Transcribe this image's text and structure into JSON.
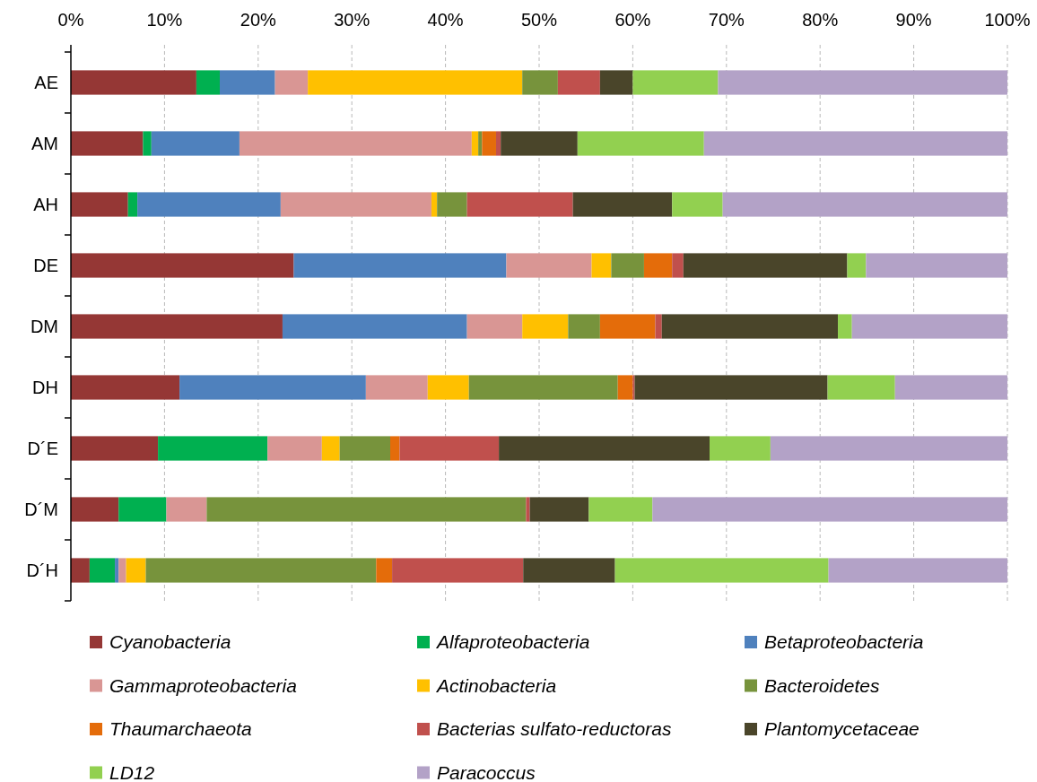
{
  "chart_data": {
    "type": "bar",
    "orientation": "horizontal",
    "stacked": true,
    "categories": [
      "AE",
      "AM",
      "AH",
      "DE",
      "DM",
      "DH",
      "D´E",
      "D´M",
      "D´H"
    ],
    "xlim": [
      0,
      100
    ],
    "xticks": [
      {
        "value": 0,
        "label": "0%"
      },
      {
        "value": 10,
        "label": "10%"
      },
      {
        "value": 20,
        "label": "20%"
      },
      {
        "value": 30,
        "label": "30%"
      },
      {
        "value": 40,
        "label": "40%"
      },
      {
        "value": 50,
        "label": "50%"
      },
      {
        "value": 60,
        "label": "60%"
      },
      {
        "value": 70,
        "label": "70%"
      },
      {
        "value": 80,
        "label": "80%"
      },
      {
        "value": 90,
        "label": "90%"
      },
      {
        "value": 100,
        "label": "100%"
      }
    ],
    "grid": "x",
    "legend": "bottom",
    "series": [
      {
        "name": "Cyanobacteria",
        "color": "#953735",
        "values": [
          13.4,
          7.7,
          6.1,
          23.8,
          22.6,
          11.6,
          9.3,
          5.1,
          2.0
        ]
      },
      {
        "name": "Alfaproteobacteria",
        "color": "#00b050",
        "values": [
          2.5,
          0.9,
          1.0,
          0,
          0,
          0,
          11.7,
          5.1,
          2.7
        ]
      },
      {
        "name": "Betaproteobacteria",
        "color": "#4f81bd",
        "values": [
          5.9,
          9.4,
          15.3,
          22.7,
          19.7,
          19.9,
          0,
          0,
          0.4
        ]
      },
      {
        "name": "Gammaproteobacteria",
        "color": "#d99694",
        "values": [
          3.5,
          24.8,
          16.1,
          9.1,
          5.9,
          6.6,
          5.8,
          4.3,
          0.8
        ]
      },
      {
        "name": "Actinobacteria",
        "color": "#ffc000",
        "values": [
          22.9,
          0.7,
          0.6,
          2.1,
          4.9,
          4.4,
          1.9,
          0,
          2.1
        ]
      },
      {
        "name": "Bacteroidetes",
        "color": "#77933c",
        "values": [
          3.8,
          0.4,
          3.2,
          3.5,
          3.4,
          15.9,
          5.4,
          34.1,
          24.6
        ]
      },
      {
        "name": "Thaumarchaeota",
        "color": "#e46c0a",
        "values": [
          0,
          1.5,
          0,
          3.0,
          5.9,
          1.6,
          1.0,
          0,
          1.7
        ]
      },
      {
        "name": "Bacterias sulfato-reductoras",
        "color": "#c0504d",
        "values": [
          4.5,
          0.5,
          11.3,
          1.2,
          0.7,
          0.2,
          10.6,
          0.4,
          14.0
        ]
      },
      {
        "name": "Plantomycetaceae",
        "color": "#4a452a",
        "values": [
          3.5,
          8.2,
          10.6,
          17.5,
          18.8,
          20.6,
          22.5,
          6.3,
          9.8
        ]
      },
      {
        "name": "LD12",
        "color": "#92d050",
        "values": [
          9.1,
          13.5,
          5.4,
          2.0,
          1.5,
          7.2,
          6.5,
          6.8,
          22.8
        ]
      },
      {
        "name": "Paracoccus",
        "color": "#b3a2c7",
        "values": [
          30.9,
          32.4,
          30.4,
          15.1,
          16.6,
          12.0,
          25.3,
          37.9,
          19.1
        ]
      }
    ]
  }
}
